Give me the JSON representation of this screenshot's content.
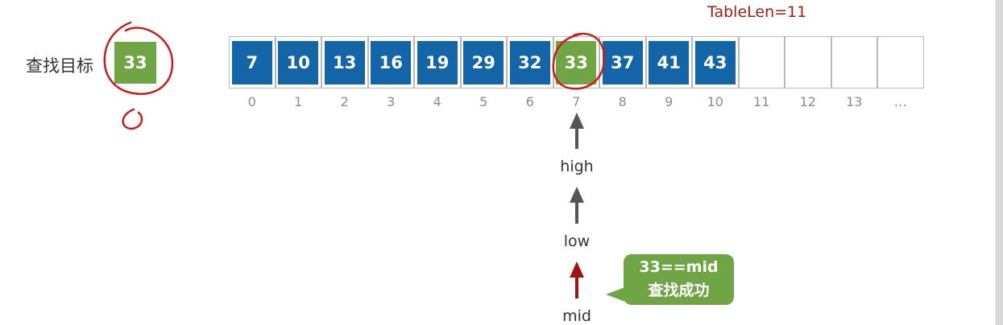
{
  "table_len_label": "TableLen=11",
  "target": {
    "label": "查找目标",
    "value": "33"
  },
  "array": {
    "values": [
      "7",
      "10",
      "13",
      "16",
      "19",
      "29",
      "32",
      "33",
      "37",
      "41",
      "43",
      "",
      "",
      "",
      ""
    ],
    "indices": [
      "0",
      "1",
      "2",
      "3",
      "4",
      "5",
      "6",
      "7",
      "8",
      "9",
      "10",
      "11",
      "12",
      "13",
      "…"
    ],
    "highlight_index": 7
  },
  "pointers": {
    "high": "high",
    "low": "low",
    "mid": "mid"
  },
  "callout": {
    "line1": "33==mid",
    "line2": "查找成功"
  },
  "colors": {
    "cell_blue": "#1464a8",
    "highlight_green": "#6fa545",
    "pointer_gray": "#555555",
    "mid_red": "#a01414",
    "table_len_red": "#a31d16",
    "annotation_red": "#cc1b1b"
  }
}
